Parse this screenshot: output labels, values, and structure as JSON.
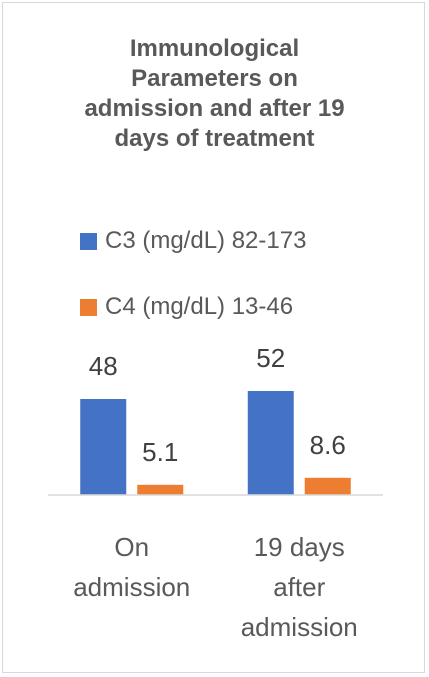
{
  "chart_data": {
    "type": "bar",
    "title": "Immunological Parameters on admission and after 19 days of treatment",
    "title_lines": [
      "Immunological",
      "Parameters on",
      "admission and after 19",
      "days of treatment"
    ],
    "categories": [
      "On admission",
      "19 days after admission"
    ],
    "category_lines": [
      [
        "On",
        "admission"
      ],
      [
        "19 days",
        "after",
        "admission"
      ]
    ],
    "series": [
      {
        "name": "C3 (mg/dL) 82-173",
        "values": [
          48,
          52
        ],
        "labels": [
          "48",
          "52"
        ],
        "color": "#4472c4"
      },
      {
        "name": "C4 (mg/dL) 13-46",
        "values": [
          5.1,
          8.6
        ],
        "labels": [
          "5.1",
          "8.6"
        ],
        "color": "#ed7d31"
      }
    ],
    "ylim": [
      0,
      52
    ],
    "grid": false,
    "legend_position": "top",
    "xlabel": "",
    "ylabel": ""
  }
}
